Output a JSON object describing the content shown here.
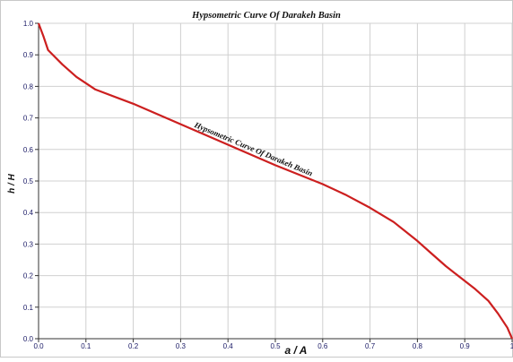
{
  "chart_data": {
    "type": "line",
    "title": "Hypsometric Curve Of Darakeh Basin",
    "xlabel": "a  / A",
    "ylabel": "h / H",
    "xlim": [
      0,
      1
    ],
    "ylim": [
      0,
      1
    ],
    "grid": true,
    "x_ticks": [
      "0.0",
      "0.1",
      "0.2",
      "0.3",
      "0.4",
      "0.5",
      "0.6",
      "0.7",
      "0.8",
      "0.9",
      "1"
    ],
    "y_ticks": [
      "0.0",
      "0.1",
      "0.2",
      "0.3",
      "0.4",
      "0.5",
      "0.6",
      "0.7",
      "0.8",
      "0.9",
      "1.0"
    ],
    "series": [
      {
        "name": "Hypsometric Curve Of Darakeh Basin",
        "color": "#cc1f1f",
        "x": [
          0.0,
          0.005,
          0.01,
          0.02,
          0.05,
          0.08,
          0.12,
          0.2,
          0.3,
          0.4,
          0.5,
          0.6,
          0.65,
          0.7,
          0.75,
          0.8,
          0.83,
          0.86,
          0.89,
          0.92,
          0.95,
          0.97,
          0.99,
          1.0
        ],
        "y": [
          1.0,
          0.98,
          0.96,
          0.915,
          0.87,
          0.83,
          0.79,
          0.745,
          0.68,
          0.615,
          0.55,
          0.49,
          0.455,
          0.415,
          0.37,
          0.31,
          0.27,
          0.23,
          0.195,
          0.16,
          0.12,
          0.08,
          0.035,
          0.0
        ]
      }
    ],
    "annotations": [
      {
        "text": "Hypsometric Curve Of Darakeh Basin"
      }
    ]
  }
}
